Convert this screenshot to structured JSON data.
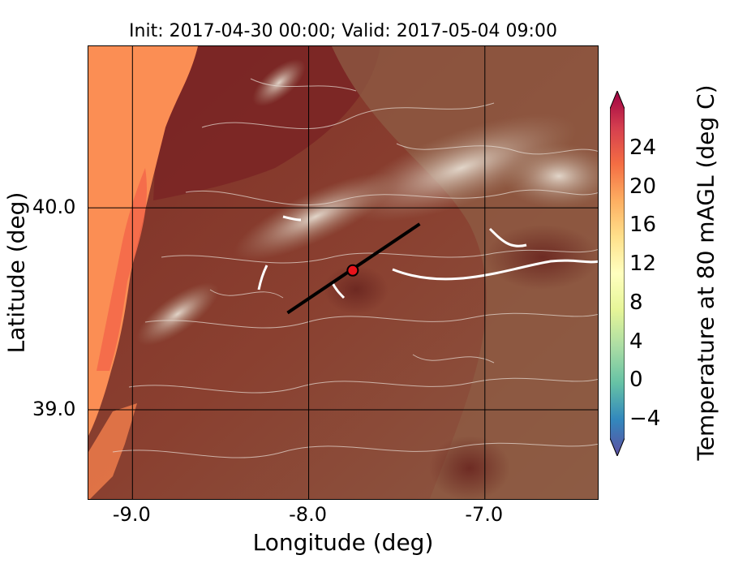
{
  "title": "Init: 2017-04-30 00:00; Valid: 2017-05-04 09:00",
  "xlabel": "Longitude (deg)",
  "ylabel": "Latitude (deg)",
  "x_ticks": [
    "-9.0",
    "-8.0",
    "-7.0"
  ],
  "y_ticks": [
    "40.0",
    "39.0"
  ],
  "colorbar": {
    "label": "Temperature at 80 mAGL (deg C)",
    "ticks": [
      "24",
      "20",
      "16",
      "12",
      "8",
      "4",
      "0",
      "−4"
    ],
    "range": [
      -6,
      28
    ],
    "colormap": "Spectral_r"
  },
  "map": {
    "lon_range": [
      -9.25,
      -6.35
    ],
    "lat_range": [
      38.55,
      40.8
    ],
    "gridline_lons": [
      -9.0,
      -8.0,
      -7.0
    ],
    "gridline_lats": [
      40.0,
      39.0
    ],
    "transect": {
      "start": [
        -8.12,
        39.48
      ],
      "end": [
        -7.37,
        39.92
      ]
    },
    "point": {
      "lon": -7.75,
      "lat": 39.69
    },
    "colors": {
      "ocean": "#fb8e54",
      "ocean_coast": "#f4694a",
      "land_warm": "#8a3a2c",
      "land_dark": "#6e2a22",
      "land_brown": "#8c5a44",
      "highland": "#c9b6a3",
      "contour": "#e9e0d8",
      "point": "#e8131b",
      "transect": "#000000"
    }
  }
}
